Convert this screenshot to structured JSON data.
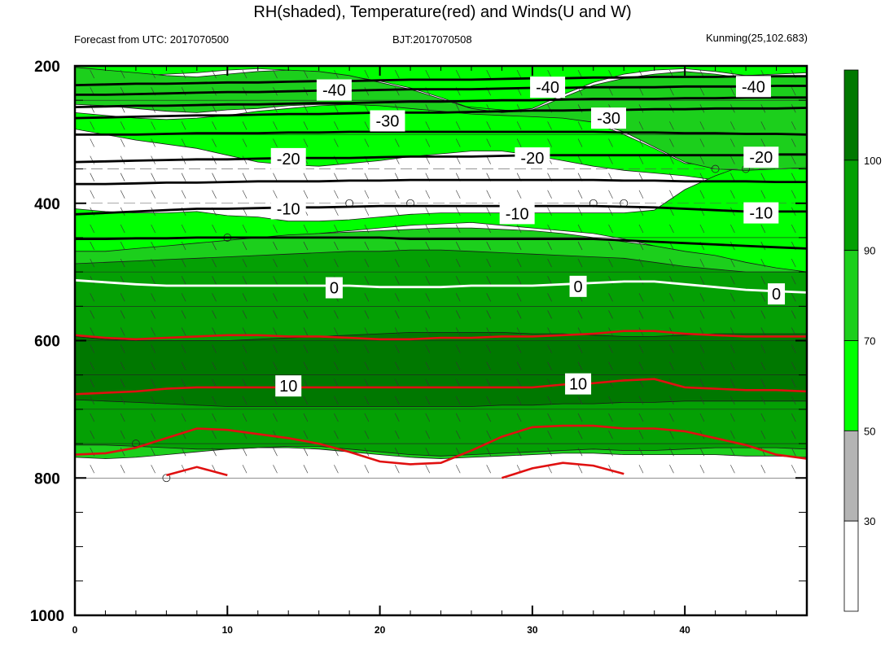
{
  "chart_data": {
    "type": "heatmap",
    "title": "RH(shaded), Temperature(red) and Winds(U and W)",
    "subtitle_left": "Forecast from UTC: 2017070500",
    "subtitle_center": "BJT:2017070508",
    "subtitle_right": "Kunming(25,102.683)",
    "xlabel": "",
    "ylabel": "",
    "xlim": [
      0,
      48
    ],
    "ylim": [
      200,
      1000
    ],
    "x_ticks": [
      0,
      10,
      20,
      30,
      40
    ],
    "y_ticks": [
      200,
      400,
      600,
      800,
      1000
    ],
    "colorbar": {
      "levels": [
        30,
        50,
        70,
        90,
        100
      ],
      "labels": [
        "30",
        "50",
        "70",
        "90",
        "100"
      ],
      "colors": [
        "#ffffff",
        "#b4b4b4",
        "#00ff00",
        "#1ccf1c",
        "#04a004",
        "#007800"
      ]
    },
    "rh_layers": [
      {
        "level": 50,
        "top": [
          200,
          200,
          200,
          200,
          200,
          200,
          200,
          200,
          200,
          200,
          200,
          200,
          200,
          200,
          200,
          200,
          200,
          200,
          200,
          200,
          200,
          200,
          200,
          200,
          200
        ],
        "bottom": [
          208,
          210,
          215,
          212,
          210,
          206,
          204,
          206,
          210,
          215,
          222,
          232,
          246,
          262,
          266,
          262,
          242,
          224,
          212,
          206,
          204,
          208,
          214,
          212,
          210
        ]
      },
      {
        "level": 50,
        "top": [
          268,
          272,
          276,
          278,
          276,
          272,
          266,
          262,
          258,
          256,
          254,
          254,
          256,
          260,
          264,
          268,
          274,
          282,
          300,
          320,
          342,
          344,
          346,
          348,
          348
        ],
        "bottom": [
          292,
          300,
          308,
          314,
          320,
          330,
          340,
          344,
          346,
          342,
          338,
          332,
          328,
          324,
          324,
          330,
          338,
          346,
          352,
          356,
          360,
          366,
          372,
          380,
          382
        ]
      },
      {
        "level": 50,
        "top": [
          408,
          412,
          414,
          414,
          412,
          418,
          420,
          426,
          426,
          424,
          420,
          416,
          414,
          414,
          414,
          414,
          414,
          414,
          414,
          410,
          380,
          360,
          344,
          330,
          320
        ],
        "bottom": [
          480,
          478,
          474,
          470,
          466,
          462,
          456,
          448,
          444,
          440,
          436,
          432,
          430,
          428,
          432,
          436,
          440,
          444,
          452,
          462,
          474,
          486,
          496,
          504,
          510
        ]
      },
      {
        "level": 70,
        "top": [
          202,
          206,
          210,
          214,
          216,
          212,
          208,
          206,
          208,
          214,
          224,
          234,
          248,
          262,
          268,
          264,
          246,
          228,
          218,
          212,
          208,
          212,
          218,
          216,
          214
        ],
        "bottom": [
          256,
          258,
          262,
          266,
          268,
          264,
          262,
          258,
          256,
          256,
          258,
          262,
          266,
          270,
          272,
          274,
          276,
          282,
          296,
          318,
          340,
          350,
          352,
          350,
          348
        ]
      },
      {
        "level": 70,
        "top": [
          470,
          470,
          466,
          462,
          458,
          454,
          450,
          446,
          444,
          442,
          440,
          438,
          436,
          436,
          438,
          440,
          444,
          450,
          456,
          462,
          470,
          476,
          486,
          494,
          500
        ],
        "bottom": [
          770,
          772,
          770,
          766,
          762,
          758,
          756,
          756,
          758,
          762,
          766,
          770,
          772,
          770,
          768,
          766,
          764,
          764,
          766,
          766,
          766,
          766,
          768,
          768,
          770
        ]
      },
      {
        "level": 90,
        "top": [
          488,
          486,
          484,
          482,
          480,
          478,
          476,
          474,
          472,
          470,
          470,
          468,
          468,
          470,
          472,
          474,
          476,
          478,
          480,
          486,
          492,
          496,
          500,
          500,
          500
        ],
        "bottom": [
          752,
          752,
          754,
          756,
          758,
          758,
          756,
          754,
          754,
          758,
          762,
          766,
          768,
          766,
          764,
          762,
          760,
          758,
          760,
          760,
          758,
          756,
          756,
          756,
          758
        ]
      },
      {
        "level": 100,
        "top": [
          594,
          598,
          600,
          600,
          600,
          600,
          598,
          596,
          594,
          592,
          590,
          588,
          588,
          588,
          588,
          590,
          590,
          592,
          594,
          594,
          592,
          590,
          590,
          590,
          590
        ],
        "bottom": [
          686,
          688,
          690,
          692,
          694,
          696,
          696,
          696,
          696,
          696,
          696,
          696,
          696,
          696,
          694,
          694,
          692,
          692,
          690,
          690,
          688,
          688,
          688,
          688,
          688
        ]
      }
    ],
    "temperature_series": [
      {
        "name": "10",
        "values": [
          678,
          676,
          674,
          670,
          668,
          668,
          668,
          668,
          668,
          668,
          668,
          668,
          668,
          668,
          668,
          668,
          664,
          662,
          658,
          656,
          668,
          670,
          672,
          672,
          674
        ]
      },
      {
        "name": "",
        "values": [
          592,
          596,
          598,
          596,
          594,
          592,
          592,
          594,
          594,
          596,
          598,
          598,
          596,
          596,
          594,
          594,
          592,
          590,
          586,
          586,
          590,
          592,
          594,
          594,
          594
        ]
      },
      {
        "name": "",
        "values": [
          766,
          764,
          756,
          742,
          728,
          730,
          736,
          742,
          750,
          762,
          776,
          780,
          778,
          760,
          740,
          726,
          724,
          724,
          728,
          728,
          732,
          742,
          752,
          766,
          772
        ]
      },
      {
        "name": "",
        "values": [
          null,
          null,
          null,
          796,
          784,
          796,
          null,
          null,
          null,
          null,
          null,
          null,
          null,
          null,
          800,
          786,
          778,
          782,
          794,
          null,
          null,
          null,
          null,
          null,
          null
        ]
      }
    ],
    "isotherms": [
      {
        "name": "-40",
        "values": [
          242,
          242,
          241,
          240,
          239,
          238,
          238,
          237,
          236,
          236,
          235,
          234,
          234,
          234,
          233,
          232,
          232,
          231,
          231,
          231,
          230,
          230,
          230,
          229,
          229
        ]
      },
      {
        "name": "-30",
        "values": [
          276,
          275,
          274,
          273,
          272,
          272,
          271,
          270,
          270,
          269,
          268,
          268,
          268,
          267,
          266,
          265,
          265,
          264,
          264,
          263,
          263,
          262,
          262,
          262,
          261
        ]
      },
      {
        "name": "-20",
        "values": [
          340,
          339,
          338,
          337,
          336,
          336,
          335,
          334,
          334,
          334,
          333,
          332,
          332,
          332,
          331,
          330,
          330,
          330,
          330,
          330,
          330,
          330,
          330,
          329,
          329
        ]
      },
      {
        "name": "-10",
        "values": [
          416,
          414,
          412,
          410,
          408,
          408,
          407,
          406,
          406,
          405,
          404,
          404,
          404,
          404,
          404,
          404,
          404,
          404,
          405,
          406,
          408,
          410,
          412,
          412,
          412
        ]
      },
      {
        "name": "",
        "values": [
          228,
          227,
          226,
          226,
          225,
          224,
          224,
          223,
          222,
          222,
          221,
          220,
          220,
          220,
          219,
          218,
          218,
          217,
          217,
          216,
          216,
          216,
          215,
          215,
          215
        ]
      },
      {
        "name": "",
        "values": [
          260,
          259,
          258,
          258,
          257,
          256,
          256,
          255,
          254,
          254,
          253,
          252,
          252,
          251,
          250,
          250,
          249,
          248,
          248,
          248,
          247,
          247,
          246,
          246,
          246
        ]
      },
      {
        "name": "",
        "values": [
          300,
          300,
          300,
          299,
          298,
          298,
          298,
          297,
          297,
          296,
          296,
          296,
          296,
          296,
          296,
          296,
          296,
          296,
          297,
          297,
          298,
          298,
          299,
          299,
          300
        ]
      },
      {
        "name": "",
        "values": [
          372,
          372,
          371,
          370,
          370,
          369,
          368,
          368,
          368,
          367,
          367,
          366,
          366,
          366,
          366,
          366,
          366,
          366,
          367,
          367,
          368,
          368,
          368,
          369,
          369
        ]
      },
      {
        "name": "",
        "values": [
          452,
          452,
          451,
          451,
          450,
          450,
          450,
          450,
          450,
          450,
          450,
          452,
          452,
          452,
          452,
          452,
          452,
          452,
          454,
          456,
          458,
          460,
          462,
          464,
          466
        ]
      },
      {
        "name": "0",
        "values": [
          512,
          515,
          518,
          520,
          520,
          520,
          520,
          520,
          520,
          520,
          522,
          522,
          522,
          520,
          520,
          520,
          518,
          516,
          514,
          514,
          518,
          522,
          526,
          528,
          530
        ]
      }
    ],
    "temperature_labels": [
      {
        "text": "-40",
        "x": 17,
        "y": 235
      },
      {
        "text": "-40",
        "x": 31,
        "y": 231
      },
      {
        "text": "-40",
        "x": 44.5,
        "y": 230
      },
      {
        "text": "-30",
        "x": 20.5,
        "y": 280
      },
      {
        "text": "-30",
        "x": 35,
        "y": 276
      },
      {
        "text": "-20",
        "x": 14,
        "y": 335
      },
      {
        "text": "-20",
        "x": 30,
        "y": 334
      },
      {
        "text": "-20",
        "x": 45,
        "y": 333
      },
      {
        "text": "-10",
        "x": 14,
        "y": 408
      },
      {
        "text": "-10",
        "x": 29,
        "y": 415
      },
      {
        "text": "-10",
        "x": 45,
        "y": 414
      },
      {
        "text": "0",
        "x": 17,
        "y": 523
      },
      {
        "text": "0",
        "x": 33,
        "y": 521
      },
      {
        "text": "0",
        "x": 46,
        "y": 532
      },
      {
        "text": "10",
        "x": 14,
        "y": 666
      },
      {
        "text": "10",
        "x": 33,
        "y": 663
      }
    ]
  }
}
